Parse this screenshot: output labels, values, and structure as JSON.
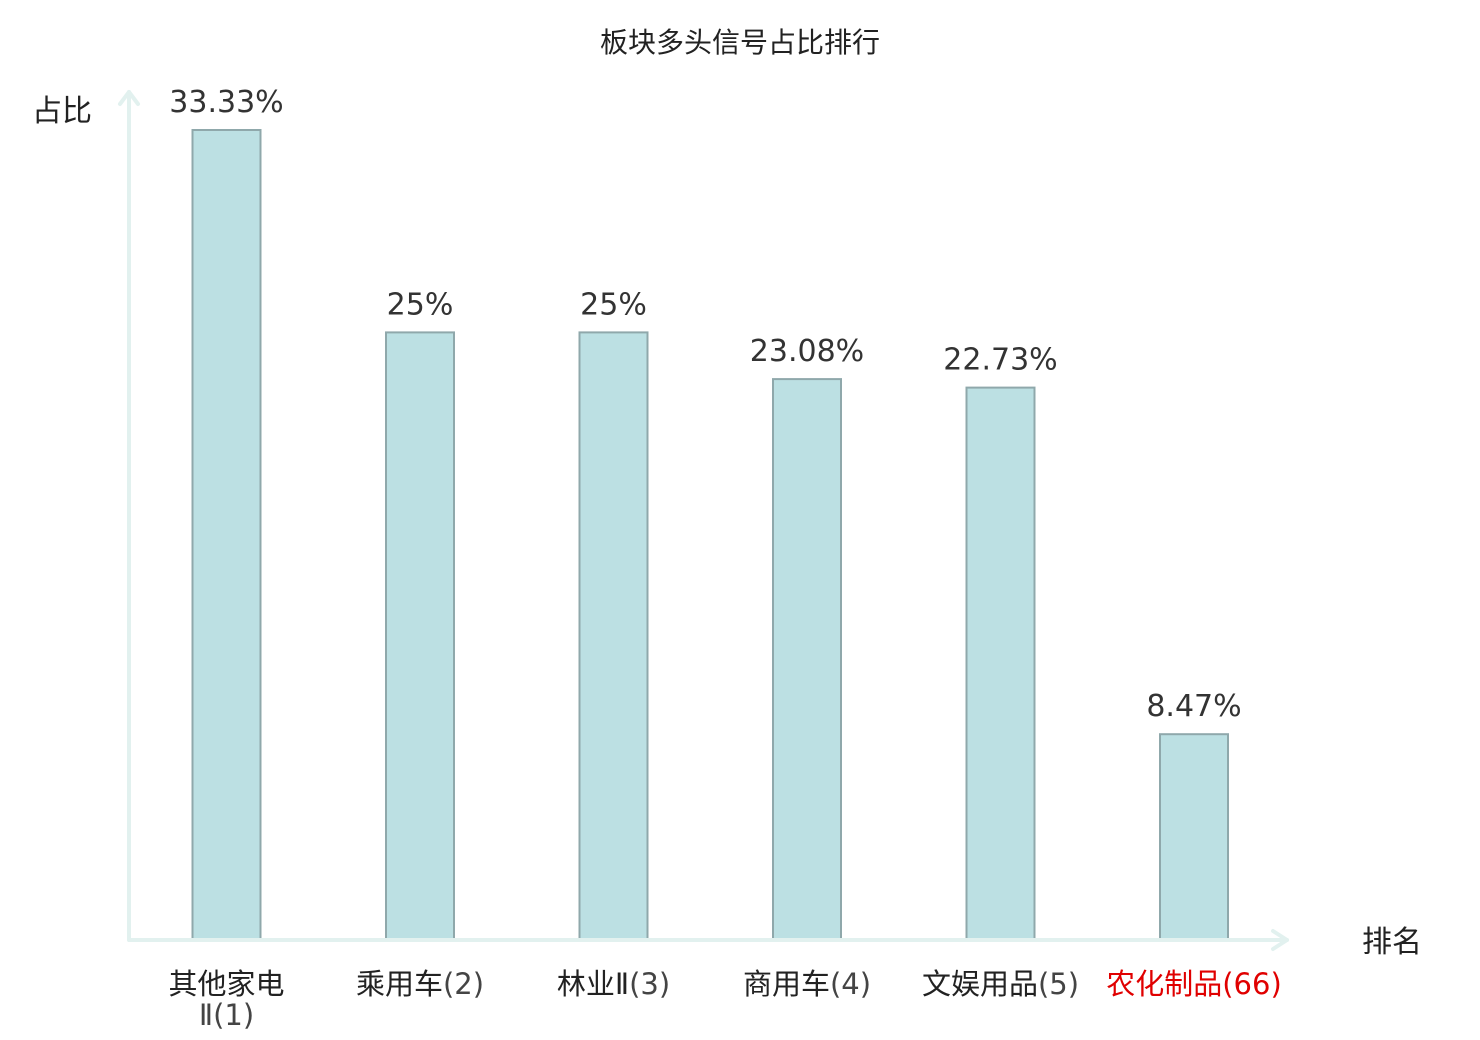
{
  "chart_data": {
    "type": "bar",
    "title": "板块多头信号占比排行",
    "ylabel": "占比",
    "xlabel": "排名",
    "ylim": [
      0,
      35
    ],
    "bar_color": "#bce0e3",
    "bar_border_color": "#8fa8ab",
    "axis_color": "#e2f1ef",
    "highlight_color": "#e00000",
    "categories": [
      {
        "name": "其他家电Ⅱ",
        "rank": "(1)",
        "value": 33.33,
        "value_label": "33.33%",
        "highlight": false
      },
      {
        "name": "乘用车",
        "rank": "(2)",
        "value": 25,
        "value_label": "25%",
        "highlight": false
      },
      {
        "name": "林业Ⅱ",
        "rank": "(3)",
        "value": 25,
        "value_label": "25%",
        "highlight": false
      },
      {
        "name": "商用车",
        "rank": "(4)",
        "value": 23.08,
        "value_label": "23.08%",
        "highlight": false
      },
      {
        "name": "文娱用品",
        "rank": "(5)",
        "value": 22.73,
        "value_label": "22.73%",
        "highlight": false
      },
      {
        "name": "农化制品",
        "rank": "(66)",
        "value": 8.47,
        "value_label": "8.47%",
        "highlight": true
      }
    ]
  }
}
